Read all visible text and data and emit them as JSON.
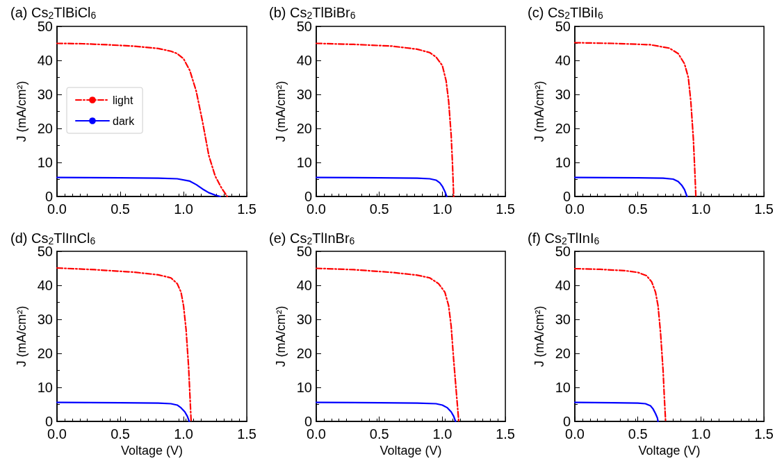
{
  "chart_data": [
    {
      "type": "line",
      "title": "(a) Cs$_{2}$TlBiCl$_{6}$",
      "ylabel": "J (mA/cm²)",
      "xlim": [
        0,
        1.5
      ],
      "xticks": [
        {
          "value": 0,
          "label": "0.0"
        },
        {
          "value": 0.5,
          "label": "0.5"
        },
        {
          "value": 1,
          "label": "1.0"
        },
        {
          "value": 1.5,
          "label": "1.5"
        }
      ],
      "ylim": [
        0,
        50
      ],
      "yticks": [
        0,
        10,
        20,
        30,
        40,
        50
      ],
      "legend": "center left",
      "marker": "none",
      "grid": false,
      "series": [
        {
          "name": "light",
          "color": "#ff0000",
          "line_style": "dashed",
          "x": [
            0,
            0.2,
            0.4,
            0.6,
            0.8,
            0.9,
            0.95,
            1.0,
            1.05,
            1.1,
            1.15,
            1.2,
            1.25,
            1.3,
            1.345
          ],
          "values": [
            45,
            44.9,
            44.6,
            44.2,
            43.5,
            42.7,
            42,
            40.5,
            37,
            31,
            22,
            12,
            6,
            2.5,
            0
          ]
        },
        {
          "name": "dark",
          "color": "#0000ff",
          "line_style": "solid",
          "x": [
            0,
            0.5,
            0.8,
            0.95,
            1.05,
            1.1,
            1.15,
            1.2,
            1.25,
            1.29
          ],
          "values": [
            5.6,
            5.5,
            5.4,
            5.2,
            4.5,
            3.5,
            2.2,
            1.1,
            0.4,
            0
          ]
        }
      ]
    },
    {
      "type": "line",
      "title": "(b) Cs$_{2}$TlBiBr$_{6}$",
      "ylabel": "J (mA/cm²)",
      "xlim": [
        0,
        1.5
      ],
      "xticks": [
        {
          "value": 0,
          "label": "0.0"
        },
        {
          "value": 0.5,
          "label": "0.5"
        },
        {
          "value": 1,
          "label": "1.0"
        },
        {
          "value": 1.5,
          "label": "1.5"
        }
      ],
      "ylim": [
        0,
        50
      ],
      "yticks": [
        0,
        10,
        20,
        30,
        40,
        50
      ],
      "marker": "none",
      "grid": false,
      "series": [
        {
          "color": "#ff0000",
          "line_style": "dashed",
          "x": [
            0,
            0.3,
            0.6,
            0.8,
            0.9,
            0.95,
            1.0,
            1.03,
            1.05,
            1.07,
            1.08,
            1.09
          ],
          "values": [
            45,
            44.7,
            44.2,
            43.3,
            42.3,
            41,
            38.5,
            34,
            28,
            18,
            10,
            0
          ]
        },
        {
          "color": "#0000ff",
          "line_style": "solid",
          "x": [
            0,
            0.5,
            0.8,
            0.9,
            0.95,
            0.98,
            1.0,
            1.02,
            1.035
          ],
          "values": [
            5.6,
            5.5,
            5.4,
            5.2,
            4.8,
            4,
            3,
            1.5,
            0
          ]
        }
      ]
    },
    {
      "type": "line",
      "title": "(c) Cs$_{2}$TlBiI$_{6}$",
      "ylabel": "J (mA/cm²)",
      "xlim": [
        0,
        1.5
      ],
      "xticks": [
        {
          "value": 0,
          "label": "0.0"
        },
        {
          "value": 0.5,
          "label": "0.5"
        },
        {
          "value": 1,
          "label": "1.0"
        },
        {
          "value": 1.5,
          "label": "1.5"
        }
      ],
      "ylim": [
        0,
        50
      ],
      "yticks": [
        0,
        10,
        20,
        30,
        40,
        50
      ],
      "marker": "none",
      "grid": false,
      "series": [
        {
          "color": "#ff0000",
          "line_style": "dashed",
          "x": [
            0,
            0.3,
            0.6,
            0.75,
            0.82,
            0.87,
            0.9,
            0.92,
            0.94,
            0.95,
            0.96
          ],
          "values": [
            45.2,
            45,
            44.6,
            43.6,
            42,
            39,
            35,
            28,
            17,
            9,
            0
          ]
        },
        {
          "color": "#0000ff",
          "line_style": "solid",
          "x": [
            0,
            0.5,
            0.7,
            0.78,
            0.82,
            0.85,
            0.87,
            0.89
          ],
          "values": [
            5.6,
            5.5,
            5.4,
            5.1,
            4.4,
            3.2,
            2,
            0
          ]
        }
      ]
    },
    {
      "type": "line",
      "title": "(d) Cs$_{2}$TlInCl$_{6}$",
      "xlabel": "Voltage (V)",
      "ylabel": "J (mA/cm²)",
      "xlim": [
        0,
        1.5
      ],
      "xticks": [
        {
          "value": 0,
          "label": "0.0"
        },
        {
          "value": 0.5,
          "label": "0.5"
        },
        {
          "value": 1,
          "label": "1.0"
        },
        {
          "value": 1.5,
          "label": "1.5"
        }
      ],
      "ylim": [
        0,
        50
      ],
      "yticks": [
        0,
        10,
        20,
        30,
        40,
        50
      ],
      "marker": "none",
      "grid": false,
      "series": [
        {
          "color": "#ff0000",
          "line_style": "dashed",
          "x": [
            0,
            0.3,
            0.6,
            0.8,
            0.9,
            0.95,
            0.98,
            1.0,
            1.02,
            1.04,
            1.05,
            1.06
          ],
          "values": [
            45.1,
            44.6,
            43.9,
            43.1,
            42.2,
            40.5,
            38,
            34,
            27,
            16,
            8,
            0
          ]
        },
        {
          "color": "#0000ff",
          "line_style": "solid",
          "x": [
            0,
            0.5,
            0.8,
            0.9,
            0.95,
            0.98,
            1.01,
            1.03,
            1.045
          ],
          "values": [
            5.6,
            5.5,
            5.4,
            5.2,
            4.8,
            4,
            2.8,
            1.5,
            0
          ]
        }
      ]
    },
    {
      "type": "line",
      "title": "(e) Cs$_{2}$TlInBr$_{6}$",
      "xlabel": "Voltage (V)",
      "ylabel": "J (mA/cm²)",
      "xlim": [
        0,
        1.5
      ],
      "xticks": [
        {
          "value": 0,
          "label": "0.0"
        },
        {
          "value": 0.5,
          "label": "0.5"
        },
        {
          "value": 1,
          "label": "1.0"
        },
        {
          "value": 1.5,
          "label": "1.5"
        }
      ],
      "ylim": [
        0,
        50
      ],
      "yticks": [
        0,
        10,
        20,
        30,
        40,
        50
      ],
      "marker": "none",
      "grid": false,
      "series": [
        {
          "color": "#ff0000",
          "line_style": "dashed",
          "x": [
            0,
            0.3,
            0.6,
            0.8,
            0.9,
            0.97,
            1.02,
            1.05,
            1.07,
            1.09,
            1.11,
            1.13
          ],
          "values": [
            45,
            44.6,
            43.8,
            43,
            42.2,
            40.5,
            38,
            34,
            28,
            18,
            9,
            0
          ]
        },
        {
          "color": "#0000ff",
          "line_style": "solid",
          "x": [
            0,
            0.5,
            0.8,
            0.95,
            1.0,
            1.04,
            1.07,
            1.09,
            1.105
          ],
          "values": [
            5.6,
            5.5,
            5.4,
            5.2,
            4.8,
            4,
            2.8,
            1.5,
            0
          ]
        }
      ]
    },
    {
      "type": "line",
      "title": "(f) Cs$_{2}$TlInI$_{6}$",
      "xlabel": "Voltage (V)",
      "ylabel": "J (mA/cm²)",
      "xlim": [
        0,
        1.5
      ],
      "xticks": [
        {
          "value": 0,
          "label": "0.0"
        },
        {
          "value": 0.5,
          "label": "0.5"
        },
        {
          "value": 1,
          "label": "1.0"
        },
        {
          "value": 1.5,
          "label": "1.5"
        }
      ],
      "ylim": [
        0,
        50
      ],
      "yticks": [
        0,
        10,
        20,
        30,
        40,
        50
      ],
      "marker": "none",
      "grid": false,
      "series": [
        {
          "color": "#ff0000",
          "line_style": "dashed",
          "x": [
            0,
            0.2,
            0.4,
            0.5,
            0.57,
            0.61,
            0.64,
            0.66,
            0.68,
            0.7,
            0.71,
            0.72
          ],
          "values": [
            44.9,
            44.7,
            44.3,
            43.8,
            42.8,
            41,
            38,
            34,
            26,
            15,
            7,
            0
          ]
        },
        {
          "color": "#0000ff",
          "line_style": "solid",
          "x": [
            0,
            0.3,
            0.5,
            0.56,
            0.6,
            0.62,
            0.64,
            0.655,
            0.66
          ],
          "values": [
            5.6,
            5.5,
            5.4,
            5.2,
            4.6,
            3.7,
            2.3,
            1,
            0
          ]
        }
      ]
    }
  ]
}
